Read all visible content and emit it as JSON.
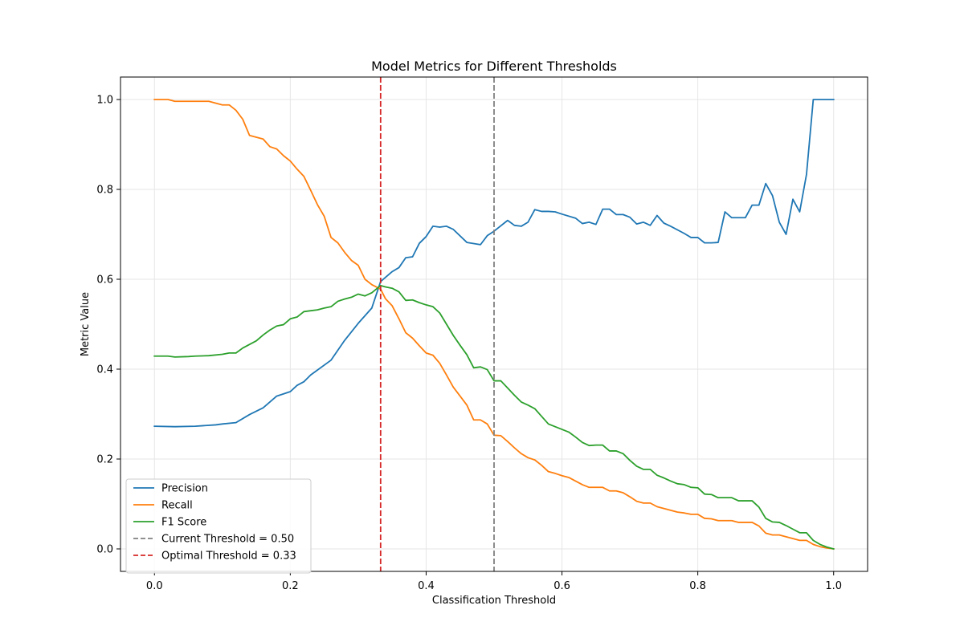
{
  "chart_data": {
    "type": "line",
    "title": "Model Metrics for Different Thresholds",
    "xlabel": "Classification Threshold",
    "ylabel": "Metric Value",
    "xlim": [
      -0.05,
      1.05
    ],
    "ylim": [
      -0.05,
      1.05
    ],
    "xticks": [
      0.0,
      0.2,
      0.4,
      0.6,
      0.8,
      1.0
    ],
    "xtick_labels": [
      "0.0",
      "0.2",
      "0.4",
      "0.6",
      "0.8",
      "1.0"
    ],
    "yticks": [
      0.0,
      0.2,
      0.4,
      0.6,
      0.8,
      1.0
    ],
    "ytick_labels": [
      "0.0",
      "0.2",
      "0.4",
      "0.6",
      "0.8",
      "1.0"
    ],
    "grid": true,
    "legend_position": "lower-left",
    "series": [
      {
        "name": "Precision",
        "color": "#1f77b4",
        "points": [
          [
            0.0,
            0.273
          ],
          [
            0.03,
            0.272
          ],
          [
            0.06,
            0.273
          ],
          [
            0.09,
            0.276
          ],
          [
            0.1,
            0.278
          ],
          [
            0.12,
            0.281
          ],
          [
            0.14,
            0.299
          ],
          [
            0.16,
            0.314
          ],
          [
            0.18,
            0.34
          ],
          [
            0.2,
            0.35
          ],
          [
            0.21,
            0.364
          ],
          [
            0.22,
            0.372
          ],
          [
            0.23,
            0.387
          ],
          [
            0.26,
            0.42
          ],
          [
            0.28,
            0.464
          ],
          [
            0.3,
            0.502
          ],
          [
            0.32,
            0.536
          ],
          [
            0.333,
            0.595
          ],
          [
            0.35,
            0.617
          ],
          [
            0.36,
            0.626
          ],
          [
            0.37,
            0.648
          ],
          [
            0.38,
            0.65
          ],
          [
            0.39,
            0.68
          ],
          [
            0.4,
            0.695
          ],
          [
            0.41,
            0.718
          ],
          [
            0.42,
            0.716
          ],
          [
            0.43,
            0.718
          ],
          [
            0.44,
            0.711
          ],
          [
            0.46,
            0.682
          ],
          [
            0.48,
            0.677
          ],
          [
            0.49,
            0.697
          ],
          [
            0.5,
            0.707
          ],
          [
            0.52,
            0.731
          ],
          [
            0.53,
            0.72
          ],
          [
            0.54,
            0.718
          ],
          [
            0.55,
            0.727
          ],
          [
            0.56,
            0.755
          ],
          [
            0.57,
            0.751
          ],
          [
            0.58,
            0.751
          ],
          [
            0.59,
            0.75
          ],
          [
            0.6,
            0.745
          ],
          [
            0.62,
            0.736
          ],
          [
            0.63,
            0.724
          ],
          [
            0.64,
            0.727
          ],
          [
            0.65,
            0.722
          ],
          [
            0.66,
            0.756
          ],
          [
            0.67,
            0.756
          ],
          [
            0.68,
            0.744
          ],
          [
            0.69,
            0.744
          ],
          [
            0.7,
            0.738
          ],
          [
            0.71,
            0.723
          ],
          [
            0.72,
            0.727
          ],
          [
            0.73,
            0.72
          ],
          [
            0.74,
            0.742
          ],
          [
            0.75,
            0.725
          ],
          [
            0.76,
            0.718
          ],
          [
            0.78,
            0.702
          ],
          [
            0.79,
            0.693
          ],
          [
            0.8,
            0.693
          ],
          [
            0.81,
            0.681
          ],
          [
            0.82,
            0.681
          ],
          [
            0.83,
            0.682
          ],
          [
            0.84,
            0.75
          ],
          [
            0.85,
            0.737
          ],
          [
            0.86,
            0.737
          ],
          [
            0.87,
            0.737
          ],
          [
            0.88,
            0.765
          ],
          [
            0.89,
            0.765
          ],
          [
            0.9,
            0.813
          ],
          [
            0.91,
            0.786
          ],
          [
            0.92,
            0.727
          ],
          [
            0.93,
            0.7
          ],
          [
            0.94,
            0.778
          ],
          [
            0.95,
            0.75
          ],
          [
            0.96,
            0.833
          ],
          [
            0.97,
            1.0
          ],
          [
            0.98,
            1.0
          ],
          [
            0.99,
            1.0
          ],
          [
            1.0,
            1.0
          ]
        ]
      },
      {
        "name": "Recall",
        "color": "#ff7f0e",
        "points": [
          [
            0.0,
            1.0
          ],
          [
            0.02,
            1.0
          ],
          [
            0.03,
            0.996
          ],
          [
            0.05,
            0.996
          ],
          [
            0.08,
            0.996
          ],
          [
            0.1,
            0.988
          ],
          [
            0.11,
            0.988
          ],
          [
            0.12,
            0.976
          ],
          [
            0.13,
            0.956
          ],
          [
            0.14,
            0.92
          ],
          [
            0.16,
            0.912
          ],
          [
            0.17,
            0.895
          ],
          [
            0.18,
            0.89
          ],
          [
            0.19,
            0.875
          ],
          [
            0.2,
            0.863
          ],
          [
            0.21,
            0.845
          ],
          [
            0.22,
            0.829
          ],
          [
            0.23,
            0.798
          ],
          [
            0.24,
            0.766
          ],
          [
            0.25,
            0.74
          ],
          [
            0.26,
            0.693
          ],
          [
            0.27,
            0.681
          ],
          [
            0.28,
            0.66
          ],
          [
            0.29,
            0.642
          ],
          [
            0.3,
            0.631
          ],
          [
            0.31,
            0.6
          ],
          [
            0.32,
            0.588
          ],
          [
            0.333,
            0.578
          ],
          [
            0.34,
            0.557
          ],
          [
            0.35,
            0.541
          ],
          [
            0.36,
            0.512
          ],
          [
            0.37,
            0.481
          ],
          [
            0.38,
            0.469
          ],
          [
            0.39,
            0.452
          ],
          [
            0.4,
            0.436
          ],
          [
            0.41,
            0.431
          ],
          [
            0.42,
            0.413
          ],
          [
            0.43,
            0.387
          ],
          [
            0.44,
            0.36
          ],
          [
            0.45,
            0.34
          ],
          [
            0.46,
            0.32
          ],
          [
            0.47,
            0.287
          ],
          [
            0.48,
            0.287
          ],
          [
            0.49,
            0.278
          ],
          [
            0.5,
            0.253
          ],
          [
            0.51,
            0.252
          ],
          [
            0.52,
            0.239
          ],
          [
            0.53,
            0.225
          ],
          [
            0.54,
            0.212
          ],
          [
            0.55,
            0.203
          ],
          [
            0.56,
            0.198
          ],
          [
            0.57,
            0.186
          ],
          [
            0.58,
            0.172
          ],
          [
            0.59,
            0.168
          ],
          [
            0.6,
            0.163
          ],
          [
            0.61,
            0.159
          ],
          [
            0.62,
            0.151
          ],
          [
            0.63,
            0.143
          ],
          [
            0.64,
            0.137
          ],
          [
            0.65,
            0.137
          ],
          [
            0.66,
            0.137
          ],
          [
            0.67,
            0.129
          ],
          [
            0.68,
            0.129
          ],
          [
            0.69,
            0.125
          ],
          [
            0.7,
            0.116
          ],
          [
            0.71,
            0.106
          ],
          [
            0.72,
            0.102
          ],
          [
            0.73,
            0.102
          ],
          [
            0.74,
            0.094
          ],
          [
            0.75,
            0.09
          ],
          [
            0.76,
            0.086
          ],
          [
            0.77,
            0.082
          ],
          [
            0.78,
            0.08
          ],
          [
            0.79,
            0.077
          ],
          [
            0.8,
            0.077
          ],
          [
            0.81,
            0.068
          ],
          [
            0.82,
            0.067
          ],
          [
            0.83,
            0.063
          ],
          [
            0.84,
            0.063
          ],
          [
            0.85,
            0.063
          ],
          [
            0.86,
            0.059
          ],
          [
            0.87,
            0.059
          ],
          [
            0.88,
            0.059
          ],
          [
            0.89,
            0.051
          ],
          [
            0.9,
            0.035
          ],
          [
            0.91,
            0.031
          ],
          [
            0.92,
            0.031
          ],
          [
            0.93,
            0.027
          ],
          [
            0.94,
            0.023
          ],
          [
            0.95,
            0.019
          ],
          [
            0.96,
            0.019
          ],
          [
            0.97,
            0.01
          ],
          [
            0.98,
            0.005
          ],
          [
            0.99,
            0.002
          ],
          [
            1.0,
            0.0
          ]
        ]
      },
      {
        "name": "F1 Score",
        "color": "#2ca02c",
        "points": [
          [
            0.0,
            0.429
          ],
          [
            0.02,
            0.429
          ],
          [
            0.03,
            0.427
          ],
          [
            0.05,
            0.428
          ],
          [
            0.06,
            0.429
          ],
          [
            0.08,
            0.43
          ],
          [
            0.1,
            0.433
          ],
          [
            0.11,
            0.436
          ],
          [
            0.12,
            0.436
          ],
          [
            0.13,
            0.447
          ],
          [
            0.14,
            0.455
          ],
          [
            0.15,
            0.463
          ],
          [
            0.16,
            0.476
          ],
          [
            0.17,
            0.487
          ],
          [
            0.18,
            0.496
          ],
          [
            0.19,
            0.499
          ],
          [
            0.2,
            0.512
          ],
          [
            0.21,
            0.516
          ],
          [
            0.22,
            0.528
          ],
          [
            0.23,
            0.53
          ],
          [
            0.24,
            0.532
          ],
          [
            0.25,
            0.536
          ],
          [
            0.26,
            0.539
          ],
          [
            0.27,
            0.551
          ],
          [
            0.28,
            0.556
          ],
          [
            0.29,
            0.56
          ],
          [
            0.3,
            0.567
          ],
          [
            0.31,
            0.563
          ],
          [
            0.32,
            0.57
          ],
          [
            0.333,
            0.586
          ],
          [
            0.34,
            0.583
          ],
          [
            0.35,
            0.58
          ],
          [
            0.36,
            0.572
          ],
          [
            0.37,
            0.553
          ],
          [
            0.38,
            0.554
          ],
          [
            0.39,
            0.548
          ],
          [
            0.4,
            0.543
          ],
          [
            0.41,
            0.539
          ],
          [
            0.42,
            0.525
          ],
          [
            0.43,
            0.5
          ],
          [
            0.44,
            0.475
          ],
          [
            0.45,
            0.453
          ],
          [
            0.46,
            0.432
          ],
          [
            0.47,
            0.403
          ],
          [
            0.48,
            0.405
          ],
          [
            0.49,
            0.399
          ],
          [
            0.5,
            0.374
          ],
          [
            0.51,
            0.374
          ],
          [
            0.52,
            0.358
          ],
          [
            0.53,
            0.342
          ],
          [
            0.54,
            0.327
          ],
          [
            0.55,
            0.32
          ],
          [
            0.56,
            0.312
          ],
          [
            0.57,
            0.295
          ],
          [
            0.58,
            0.278
          ],
          [
            0.59,
            0.272
          ],
          [
            0.6,
            0.266
          ],
          [
            0.61,
            0.26
          ],
          [
            0.62,
            0.249
          ],
          [
            0.63,
            0.237
          ],
          [
            0.64,
            0.23
          ],
          [
            0.65,
            0.231
          ],
          [
            0.66,
            0.231
          ],
          [
            0.67,
            0.218
          ],
          [
            0.68,
            0.218
          ],
          [
            0.69,
            0.212
          ],
          [
            0.7,
            0.197
          ],
          [
            0.71,
            0.184
          ],
          [
            0.72,
            0.177
          ],
          [
            0.73,
            0.177
          ],
          [
            0.74,
            0.164
          ],
          [
            0.75,
            0.158
          ],
          [
            0.76,
            0.151
          ],
          [
            0.77,
            0.145
          ],
          [
            0.78,
            0.143
          ],
          [
            0.79,
            0.137
          ],
          [
            0.8,
            0.136
          ],
          [
            0.81,
            0.122
          ],
          [
            0.82,
            0.121
          ],
          [
            0.83,
            0.114
          ],
          [
            0.84,
            0.114
          ],
          [
            0.85,
            0.114
          ],
          [
            0.86,
            0.107
          ],
          [
            0.87,
            0.107
          ],
          [
            0.88,
            0.107
          ],
          [
            0.89,
            0.093
          ],
          [
            0.9,
            0.068
          ],
          [
            0.91,
            0.06
          ],
          [
            0.92,
            0.059
          ],
          [
            0.93,
            0.052
          ],
          [
            0.94,
            0.044
          ],
          [
            0.95,
            0.036
          ],
          [
            0.96,
            0.036
          ],
          [
            0.97,
            0.019
          ],
          [
            0.98,
            0.01
          ],
          [
            0.99,
            0.004
          ],
          [
            1.0,
            0.0
          ]
        ]
      }
    ],
    "reference_lines": [
      {
        "name": "Current Threshold = 0.50",
        "x": 0.5,
        "color": "#808080",
        "dash": "dashed"
      },
      {
        "name": "Optimal Threshold = 0.33",
        "x": 0.333,
        "color": "#d62728",
        "dash": "dashed"
      }
    ]
  }
}
